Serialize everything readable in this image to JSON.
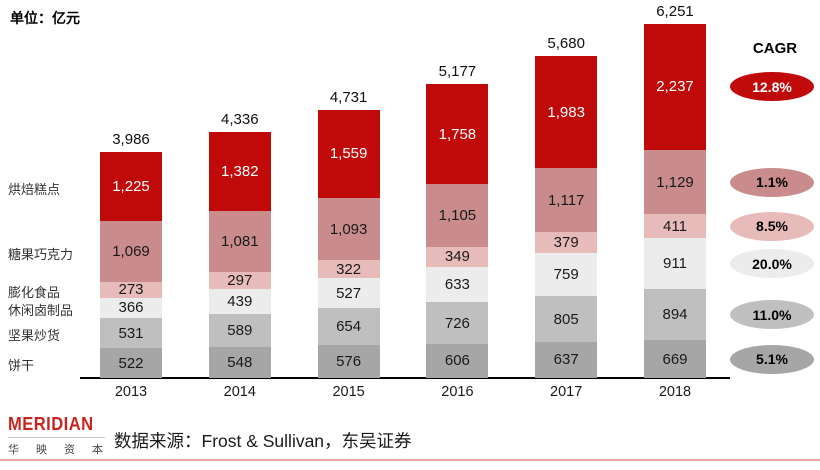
{
  "header": {
    "unit_label": "单位：亿元"
  },
  "chart_data": {
    "type": "bar",
    "subtype": "stacked",
    "unit": "亿元",
    "categories": [
      "2013",
      "2014",
      "2015",
      "2016",
      "2017",
      "2018"
    ],
    "series": [
      {
        "name": "饼干",
        "color": "#A6A6A6",
        "text_color": "#1a1a1a",
        "cagr": "5.1%",
        "cagr_text_color": "#000000",
        "values": [
          522,
          548,
          576,
          606,
          637,
          669
        ]
      },
      {
        "name": "坚果炒货",
        "color": "#BFBFBF",
        "text_color": "#1a1a1a",
        "cagr": "11.0%",
        "cagr_text_color": "#000000",
        "values": [
          531,
          589,
          654,
          726,
          805,
          894
        ]
      },
      {
        "name": "休闲卤制品",
        "color": "#ECECEC",
        "text_color": "#1a1a1a",
        "cagr": "20.0%",
        "cagr_text_color": "#000000",
        "values": [
          366,
          439,
          527,
          633,
          759,
          911
        ]
      },
      {
        "name": "膨化食品",
        "color": "#E7BBBA",
        "text_color": "#1a1a1a",
        "cagr": "8.5%",
        "cagr_text_color": "#000000",
        "values": [
          273,
          297,
          322,
          349,
          379,
          411
        ]
      },
      {
        "name": "糖果巧克力",
        "color": "#C98B8B",
        "text_color": "#1a1a1a",
        "cagr": "1.1%",
        "cagr_text_color": "#000000",
        "values": [
          1069,
          1081,
          1093,
          1105,
          1117,
          1129
        ]
      },
      {
        "name": "烘焙糕点",
        "color": "#C00A0A",
        "text_color": "#ffffff",
        "cagr": "12.8%",
        "cagr_text_color": "#ffffff",
        "values": [
          1225,
          1382,
          1559,
          1758,
          1983,
          2237
        ]
      }
    ],
    "totals": [
      3986,
      4336,
      4731,
      5177,
      5680,
      6251
    ],
    "cagr_title": "CAGR",
    "ylim": [
      0,
      6251
    ],
    "grid": false,
    "legend_position": "left-category-labels"
  },
  "footer": {
    "source": "数据来源：Frost & Sullivan，东吴证券",
    "logo_text": "MERIDIAN",
    "logo_subtext": "华映资本"
  },
  "colors": {
    "accent_red": "#C00A0A",
    "bottom_rule": "#F2A6A3",
    "axis": "#000000"
  }
}
